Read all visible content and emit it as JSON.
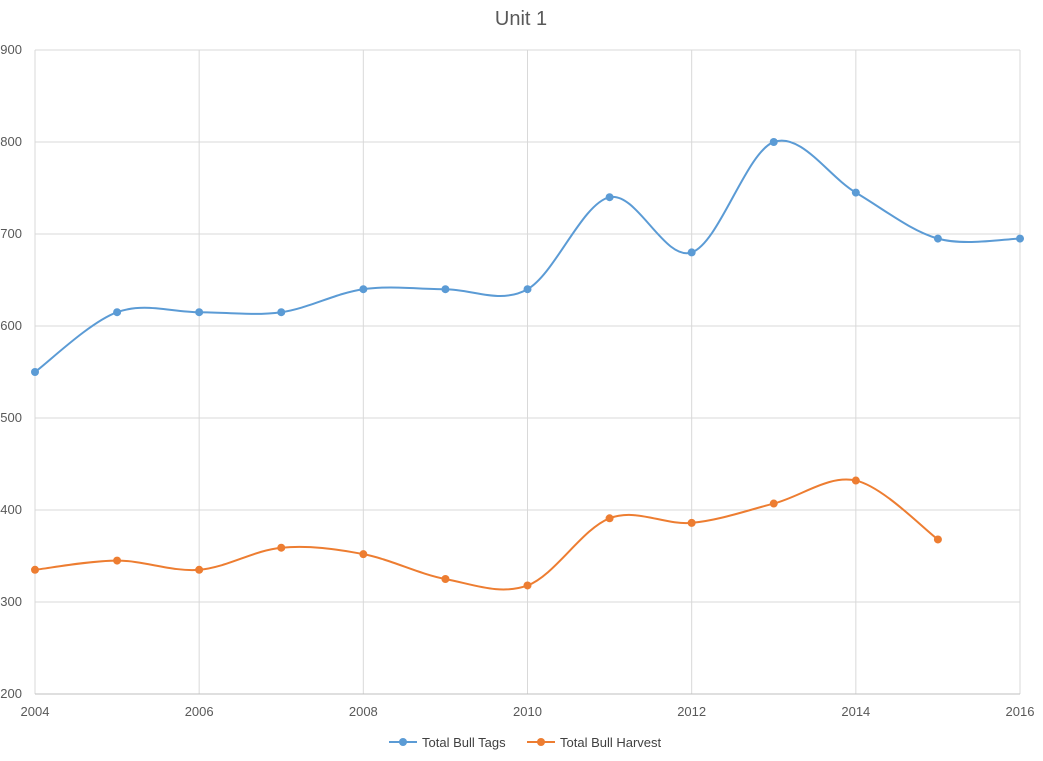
{
  "chart_data": {
    "type": "line",
    "title": "Unit 1",
    "xlabel": "",
    "ylabel": "",
    "x": [
      2004,
      2005,
      2006,
      2007,
      2008,
      2009,
      2010,
      2011,
      2012,
      2013,
      2014,
      2015,
      2016
    ],
    "xlim": [
      2004,
      2016
    ],
    "ylim": [
      200,
      900
    ],
    "x_ticks": [
      "2004",
      "2006",
      "2008",
      "2010",
      "2012",
      "2014",
      "2016"
    ],
    "y_ticks": [
      "200",
      "300",
      "400",
      "500",
      "600",
      "700",
      "800",
      "900"
    ],
    "grid": true,
    "smoothed": true,
    "legend_position": "bottom",
    "series": [
      {
        "name": "Total Bull Tags",
        "color": "#5B9BD5",
        "values": [
          550,
          615,
          615,
          615,
          640,
          640,
          640,
          740,
          680,
          800,
          745,
          695,
          695
        ]
      },
      {
        "name": "Total Bull Harvest",
        "color": "#ED7D31",
        "values": [
          335,
          345,
          335,
          359,
          352,
          325,
          318,
          391,
          386,
          407,
          432,
          368,
          null
        ]
      }
    ]
  }
}
